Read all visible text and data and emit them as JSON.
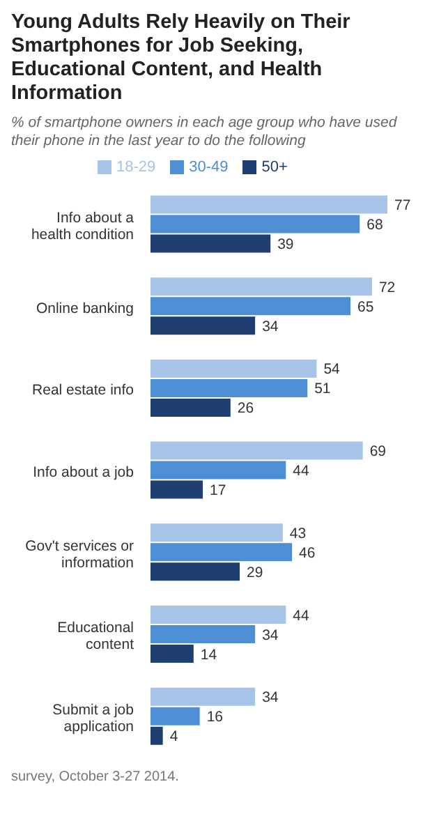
{
  "chart_data": {
    "type": "bar",
    "orientation": "horizontal",
    "title": "Young Adults Rely Heavily on Their Smartphones for Job Seeking, Educational Content, and Health Information",
    "subtitle": "% of smartphone owners in each age group who have used their phone in the last year to do the following",
    "categories": [
      "Info about a health condition",
      "Online banking",
      "Real estate info",
      "Info about a job",
      "Gov't services or information",
      "Educational content",
      "Submit a job application"
    ],
    "series": [
      {
        "name": "18-29",
        "color": "#a6c4e8",
        "values": [
          77,
          72,
          54,
          69,
          43,
          44,
          34
        ]
      },
      {
        "name": "30-49",
        "color": "#4e8ed4",
        "values": [
          68,
          65,
          51,
          44,
          46,
          34,
          16
        ]
      },
      {
        "name": "50+",
        "color": "#1f3f70",
        "values": [
          39,
          34,
          26,
          17,
          29,
          14,
          4
        ]
      }
    ],
    "data_labels": true,
    "legend": "top",
    "annotations": [
      "survey, October 3-27 2014."
    ]
  }
}
